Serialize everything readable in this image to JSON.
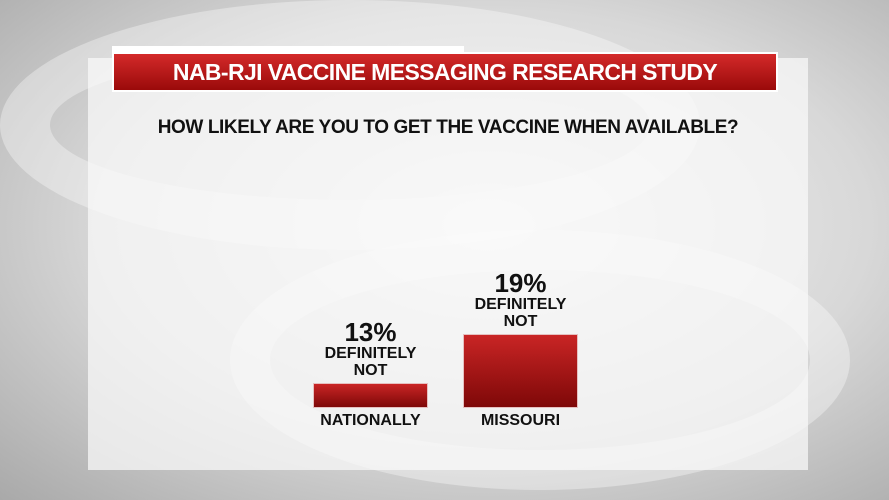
{
  "header": {
    "title": "NAB-RJI VACCINE MESSAGING RESEARCH STUDY"
  },
  "colors": {
    "accent": "#b01414",
    "text": "#111111"
  },
  "chart_data": {
    "type": "bar",
    "title": "HOW LIKELY ARE YOU TO GET THE VACCINE WHEN AVAILABLE?",
    "categories": [
      "NATIONALLY",
      "MISSOURI"
    ],
    "values": [
      13,
      19
    ],
    "value_labels": [
      "13%",
      "19%"
    ],
    "annotation": "DEFINITELY NOT",
    "annotations": [
      "DEFINITELY NOT",
      "DEFINITELY NOT"
    ],
    "grid": false
  }
}
